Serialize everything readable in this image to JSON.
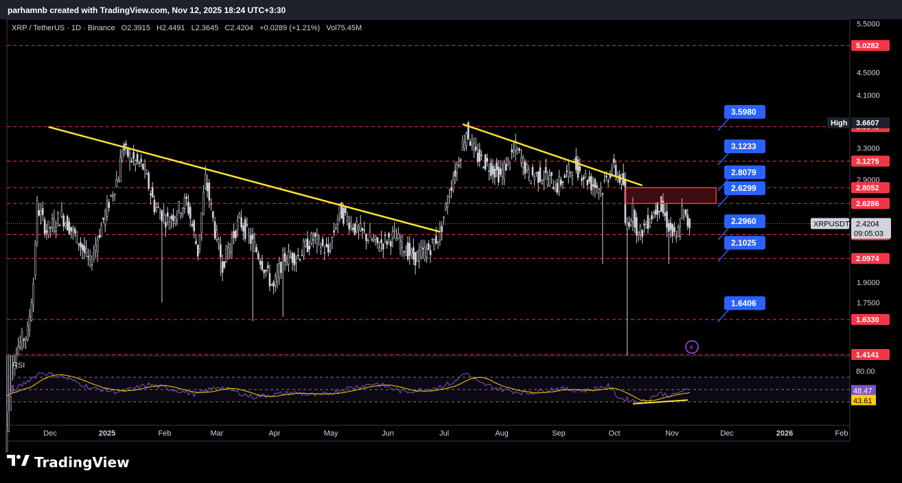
{
  "header": {
    "attribution": "parhamnb created with TradingView.com, Nov 12, 2025 18:24 UTC+3:30"
  },
  "legend": {
    "symbol": "XRP / TetherUS · 1D · Binance",
    "open": "O2.3915",
    "high": "H2.4491",
    "low": "L2.3645",
    "close": "C2.4204",
    "change": "+0.0289 (+1.21%)",
    "volume": "Vol75.45M"
  },
  "brand": {
    "logo_text": "TradingView"
  },
  "colors": {
    "background": "#000000",
    "candle": "#d1d4dc",
    "trendline": "#ffe333",
    "level_dashed": "#f23645",
    "level_tag_bg": "#f23645",
    "target_tag_bg": "#2962ff",
    "rsi_line": "#7e57c2",
    "rsi_ma": "#ffd000",
    "zone_fill": "rgba(242,54,69,0.25)",
    "zone_border": "#f23645"
  },
  "chart_data": {
    "type": "candlestick",
    "symbol": "XRPUSDT",
    "timeframe": "1D",
    "x_axis_labels": [
      "Dec",
      "2025",
      "Feb",
      "Mar",
      "Apr",
      "May",
      "Jun",
      "Jul",
      "Aug",
      "Sep",
      "Oct",
      "Nov",
      "Dec",
      "2026",
      "Feb"
    ],
    "price_axis_ticks": [
      "5.5000",
      "4.5000",
      "4.1000",
      "3.3000",
      "2.9000",
      "1.9000",
      "1.7500"
    ],
    "scale": "log",
    "ylim": [
      1.41,
      5.6
    ],
    "current_price": {
      "label": "XRPUSDT",
      "value": "2.4204",
      "countdown": "09:05:03"
    },
    "high_marker": {
      "label": "High",
      "value": "3.6607"
    },
    "horizontal_levels": [
      "5.0282",
      "3.6045",
      "3.1275",
      "2.8052",
      "2.6286",
      "2.3127",
      "2.0974",
      "1.6330",
      "1.4141"
    ],
    "target_labels": [
      "3.5980",
      "3.1233",
      "2.8079",
      "2.6299",
      "2.2960",
      "2.1025",
      "1.6406"
    ],
    "resistance_zone": {
      "top": 2.8052,
      "bottom": 2.6286
    },
    "trendlines": [
      {
        "name": "",
        "from": {
          "date": "2024-12-08",
          "price": 3.6
        },
        "to": {
          "date": "2025-07-03",
          "price": 2.34
        }
      },
      {
        "name": "",
        "from": {
          "date": "2025-07-15",
          "price": 3.64
        },
        "to": {
          "date": "2025-10-18",
          "price": 2.83
        }
      }
    ],
    "rsi": {
      "label": "RSI",
      "value": "48.47",
      "ma_value": "43.61",
      "tick_labels": [
        "80.00"
      ],
      "upper_band": 70,
      "lower_band": 30
    }
  }
}
